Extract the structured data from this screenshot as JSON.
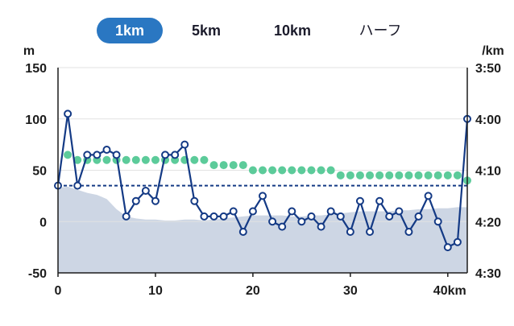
{
  "tabs": [
    {
      "label": "1km",
      "active": true
    },
    {
      "label": "5km",
      "active": false
    },
    {
      "label": "10km",
      "active": false
    },
    {
      "label": "ハーフ",
      "active": false
    }
  ],
  "colors": {
    "accent": "#2a77c2",
    "pace_line": "#143a85",
    "average_dots": "#5ccb9a",
    "elevation_fill": "#cdd6e4",
    "axis": "#1c1c1c"
  },
  "chart_data": {
    "type": "line",
    "left_axis_unit": "m",
    "right_axis_unit": "/km",
    "left_ticks": [
      "150",
      "100",
      "50",
      "0",
      "-50"
    ],
    "right_ticks": [
      "3:50",
      "4:00",
      "4:10",
      "4:20",
      "4:30"
    ],
    "x_ticks": [
      "0",
      "10",
      "20",
      "30",
      "40km"
    ],
    "xlim": [
      0,
      42
    ],
    "ylim_left": [
      -50,
      150
    ],
    "ylim_right_seconds_per_km": [
      230,
      270
    ],
    "pace_seconds_per_km": [
      253,
      239,
      253,
      247,
      247,
      246,
      247,
      259,
      256,
      254,
      256,
      247,
      247,
      245,
      256,
      259,
      259,
      259,
      258,
      262,
      258,
      255,
      260,
      261,
      258,
      260,
      259,
      261,
      258,
      259,
      262,
      256,
      262,
      256,
      259,
      258,
      262,
      259,
      255,
      260,
      265,
      264,
      240
    ],
    "average_pace_seconds_per_km": [
      253,
      247,
      248,
      248,
      248,
      248,
      248,
      248,
      248,
      248,
      248,
      248,
      248,
      248,
      248,
      248,
      249,
      249,
      249,
      249,
      250,
      250,
      250,
      250,
      250,
      250,
      250,
      250,
      250,
      251,
      251,
      251,
      251,
      251,
      251,
      251,
      251,
      251,
      251,
      251,
      251,
      251,
      252
    ],
    "target_pace_seconds_per_km": 253,
    "elevation_km": [
      0,
      1,
      2,
      3,
      4,
      5,
      6,
      7,
      8,
      9,
      10,
      11,
      12,
      13,
      14,
      15,
      16,
      17,
      18,
      19,
      20,
      21,
      22,
      23,
      24,
      25,
      26,
      27,
      28,
      29,
      30,
      31,
      32,
      33,
      34,
      35,
      36,
      37,
      38,
      39,
      40,
      41,
      42
    ],
    "elevation_m": [
      33,
      34,
      31,
      28,
      26,
      22,
      12,
      5,
      3,
      2,
      2,
      1,
      1,
      2,
      2,
      1,
      2,
      3,
      4,
      5,
      6,
      6,
      6,
      6,
      5,
      5,
      6,
      6,
      7,
      8,
      9,
      10,
      10,
      10,
      10,
      11,
      11,
      12,
      12,
      13,
      13,
      14,
      14
    ]
  }
}
